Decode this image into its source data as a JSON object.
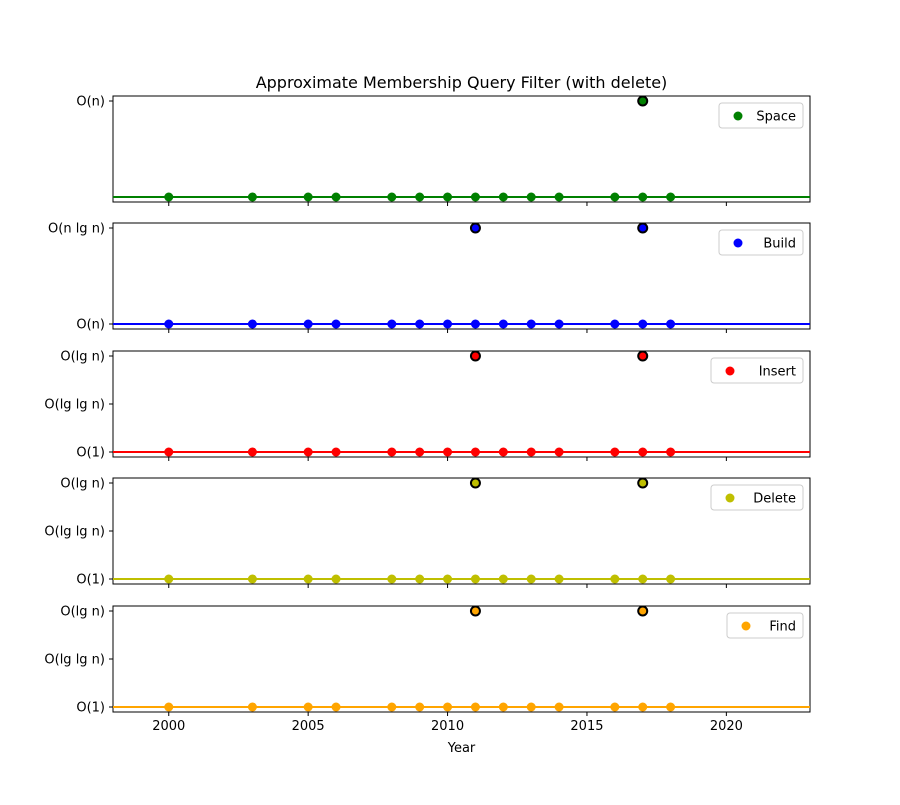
{
  "chart_data": {
    "type": "scatter",
    "title": "Approximate Membership Query Filter (with delete)",
    "xlabel": "Year",
    "xlim": [
      1998,
      2023
    ],
    "xticks": [
      2000,
      2005,
      2010,
      2015,
      2020
    ],
    "grid": false,
    "legend_placement": "upper-right",
    "subplots": [
      {
        "name": "Space",
        "color": "#008000",
        "yticks": [
          "O(n)"
        ],
        "ylevels": [
          "baseline",
          "O(n)"
        ],
        "baseline": "baseline",
        "points": [
          {
            "x": 2000,
            "y": "baseline"
          },
          {
            "x": 2003,
            "y": "baseline"
          },
          {
            "x": 2005,
            "y": "baseline"
          },
          {
            "x": 2006,
            "y": "baseline"
          },
          {
            "x": 2008,
            "y": "baseline"
          },
          {
            "x": 2009,
            "y": "baseline"
          },
          {
            "x": 2010,
            "y": "baseline"
          },
          {
            "x": 2011,
            "y": "baseline"
          },
          {
            "x": 2012,
            "y": "baseline"
          },
          {
            "x": 2013,
            "y": "baseline"
          },
          {
            "x": 2014,
            "y": "baseline"
          },
          {
            "x": 2016,
            "y": "baseline"
          },
          {
            "x": 2017,
            "y": "baseline"
          },
          {
            "x": 2018,
            "y": "baseline"
          },
          {
            "x": 2017,
            "y": "O(n)",
            "highlight": true
          }
        ]
      },
      {
        "name": "Build",
        "color": "#0000ff",
        "yticks": [
          "O(n)",
          "O(n lg n)"
        ],
        "ylevels": [
          "O(n)",
          "O(n lg n)"
        ],
        "baseline": "O(n)",
        "points": [
          {
            "x": 2000,
            "y": "O(n)"
          },
          {
            "x": 2003,
            "y": "O(n)"
          },
          {
            "x": 2005,
            "y": "O(n)"
          },
          {
            "x": 2006,
            "y": "O(n)"
          },
          {
            "x": 2008,
            "y": "O(n)"
          },
          {
            "x": 2009,
            "y": "O(n)"
          },
          {
            "x": 2010,
            "y": "O(n)"
          },
          {
            "x": 2011,
            "y": "O(n)"
          },
          {
            "x": 2012,
            "y": "O(n)"
          },
          {
            "x": 2013,
            "y": "O(n)"
          },
          {
            "x": 2014,
            "y": "O(n)"
          },
          {
            "x": 2016,
            "y": "O(n)"
          },
          {
            "x": 2017,
            "y": "O(n)"
          },
          {
            "x": 2018,
            "y": "O(n)"
          },
          {
            "x": 2011,
            "y": "O(n lg n)",
            "highlight": true
          },
          {
            "x": 2017,
            "y": "O(n lg n)",
            "highlight": true
          }
        ]
      },
      {
        "name": "Insert",
        "color": "#ff0000",
        "yticks": [
          "O(1)",
          "O(lg lg n)",
          "O(lg n)"
        ],
        "ylevels": [
          "O(1)",
          "O(lg lg n)",
          "O(lg n)"
        ],
        "baseline": "O(1)",
        "points": [
          {
            "x": 2000,
            "y": "O(1)"
          },
          {
            "x": 2003,
            "y": "O(1)"
          },
          {
            "x": 2005,
            "y": "O(1)"
          },
          {
            "x": 2006,
            "y": "O(1)"
          },
          {
            "x": 2008,
            "y": "O(1)"
          },
          {
            "x": 2009,
            "y": "O(1)"
          },
          {
            "x": 2010,
            "y": "O(1)"
          },
          {
            "x": 2011,
            "y": "O(1)"
          },
          {
            "x": 2012,
            "y": "O(1)"
          },
          {
            "x": 2013,
            "y": "O(1)"
          },
          {
            "x": 2014,
            "y": "O(1)"
          },
          {
            "x": 2016,
            "y": "O(1)"
          },
          {
            "x": 2017,
            "y": "O(1)"
          },
          {
            "x": 2018,
            "y": "O(1)"
          },
          {
            "x": 2011,
            "y": "O(lg n)",
            "highlight": true
          },
          {
            "x": 2017,
            "y": "O(lg n)",
            "highlight": true
          }
        ]
      },
      {
        "name": "Delete",
        "color": "#bfbf00",
        "yticks": [
          "O(1)",
          "O(lg lg n)",
          "O(lg n)"
        ],
        "ylevels": [
          "O(1)",
          "O(lg lg n)",
          "O(lg n)"
        ],
        "baseline": "O(1)",
        "points": [
          {
            "x": 2000,
            "y": "O(1)"
          },
          {
            "x": 2003,
            "y": "O(1)"
          },
          {
            "x": 2005,
            "y": "O(1)"
          },
          {
            "x": 2006,
            "y": "O(1)"
          },
          {
            "x": 2008,
            "y": "O(1)"
          },
          {
            "x": 2009,
            "y": "O(1)"
          },
          {
            "x": 2010,
            "y": "O(1)"
          },
          {
            "x": 2011,
            "y": "O(1)"
          },
          {
            "x": 2012,
            "y": "O(1)"
          },
          {
            "x": 2013,
            "y": "O(1)"
          },
          {
            "x": 2014,
            "y": "O(1)"
          },
          {
            "x": 2016,
            "y": "O(1)"
          },
          {
            "x": 2017,
            "y": "O(1)"
          },
          {
            "x": 2018,
            "y": "O(1)"
          },
          {
            "x": 2011,
            "y": "O(lg n)",
            "highlight": true
          },
          {
            "x": 2017,
            "y": "O(lg n)",
            "highlight": true
          }
        ]
      },
      {
        "name": "Find",
        "color": "#ffa500",
        "yticks": [
          "O(1)",
          "O(lg lg n)",
          "O(lg n)"
        ],
        "ylevels": [
          "O(1)",
          "O(lg lg n)",
          "O(lg n)"
        ],
        "baseline": "O(1)",
        "points": [
          {
            "x": 2000,
            "y": "O(1)"
          },
          {
            "x": 2003,
            "y": "O(1)"
          },
          {
            "x": 2005,
            "y": "O(1)"
          },
          {
            "x": 2006,
            "y": "O(1)"
          },
          {
            "x": 2008,
            "y": "O(1)"
          },
          {
            "x": 2009,
            "y": "O(1)"
          },
          {
            "x": 2010,
            "y": "O(1)"
          },
          {
            "x": 2011,
            "y": "O(1)"
          },
          {
            "x": 2012,
            "y": "O(1)"
          },
          {
            "x": 2013,
            "y": "O(1)"
          },
          {
            "x": 2014,
            "y": "O(1)"
          },
          {
            "x": 2016,
            "y": "O(1)"
          },
          {
            "x": 2017,
            "y": "O(1)"
          },
          {
            "x": 2018,
            "y": "O(1)"
          },
          {
            "x": 2011,
            "y": "O(lg n)",
            "highlight": true
          },
          {
            "x": 2017,
            "y": "O(lg n)",
            "highlight": true
          }
        ]
      }
    ]
  }
}
